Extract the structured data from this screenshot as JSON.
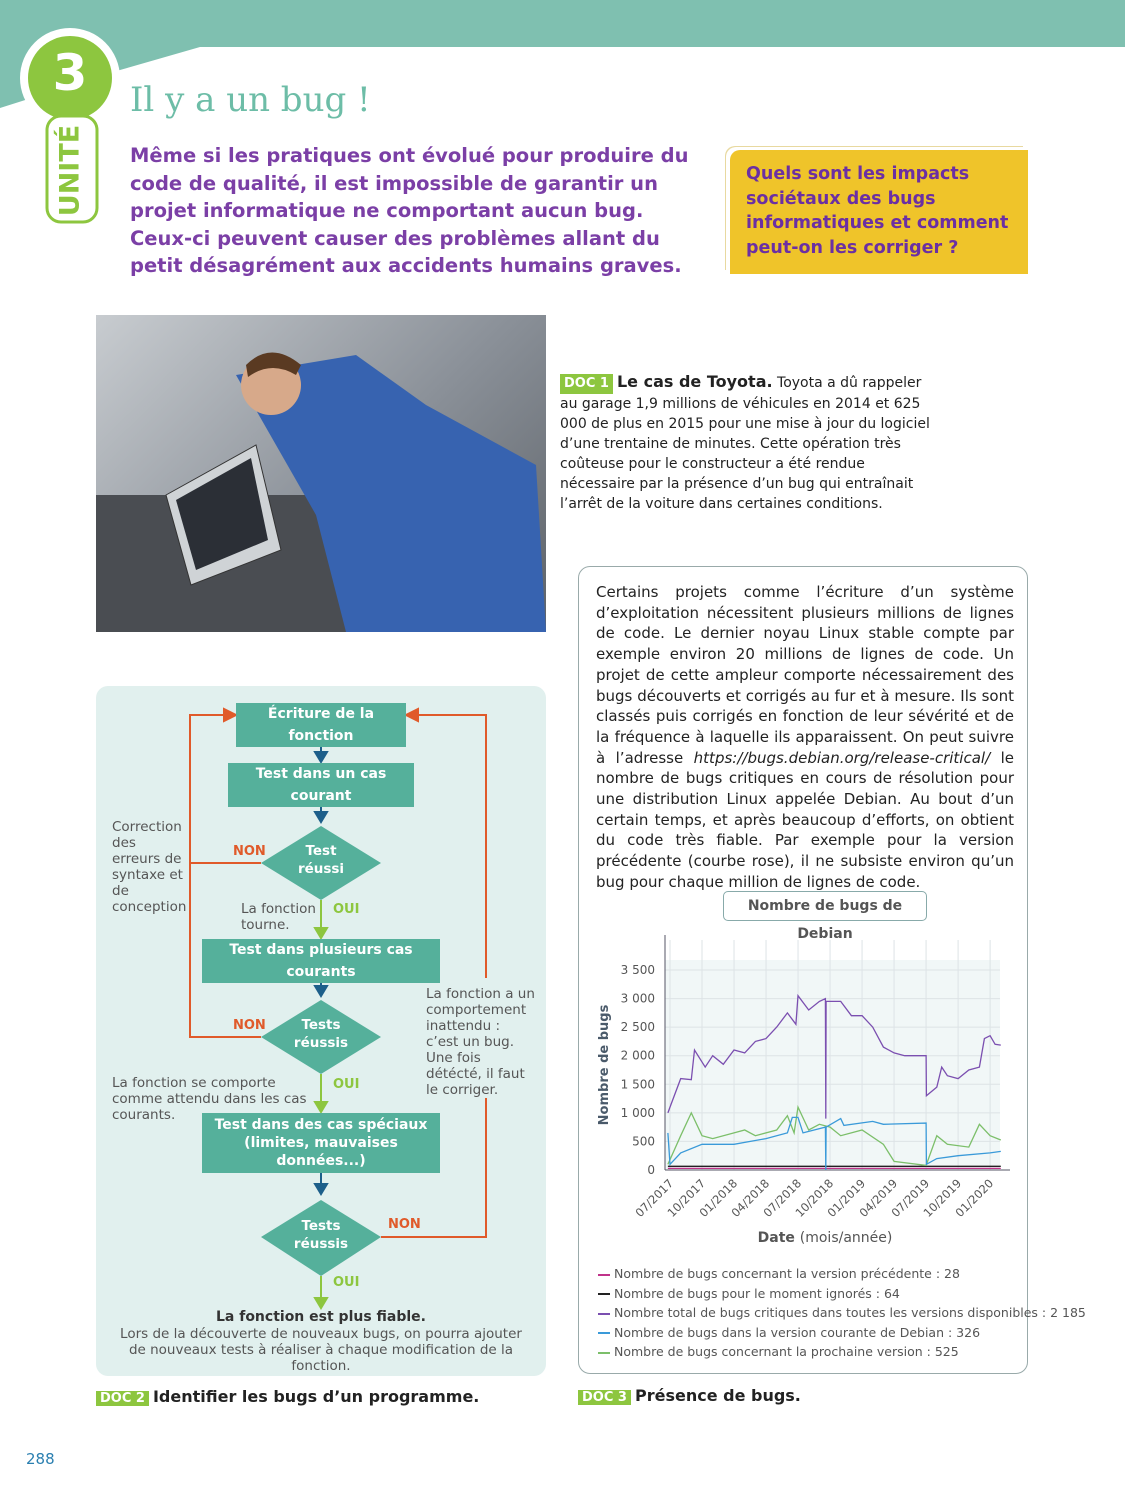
{
  "header": {
    "unit_number": "3",
    "unit_label": "UNITÉ",
    "title": "Il y a un bug !",
    "intro": "Même si les pratiques ont évolué pour produire du code de qualité, il est impossible de garantir un projet informatique ne comportant aucun bug. Ceux-ci peuvent causer des problèmes allant du petit désagrément aux accidents humains graves.",
    "question": "Quels sont les impacts sociétaux des bugs informatiques et comment peut-on les corriger ?"
  },
  "doc1": {
    "tag": "DOC 1",
    "title": "Le cas de Toyota.",
    "text": "Toyota a dû rappeler au garage 1,9 millions de véhicules en 2014 et 625 000 de plus en 2015 pour une mise à jour du logiciel d’une trentaine de minutes. Cette opération très coûteuse pour le constructeur a été rendue nécessaire par la présence d’un bug qui entraînait l’arrêt de la voiture dans certaines conditions."
  },
  "doc2": {
    "tag": "DOC 2",
    "caption": "Identifier les bugs d’un programme.",
    "steps": {
      "write": "Écriture de la fonction",
      "test1": "Test dans un cas courant",
      "dec1": "Test réussi",
      "test2": "Test dans plusieurs cas courants",
      "dec2": "Tests réussis",
      "test3": "Test dans des cas spéciaux (limites, mauvaises données...)",
      "dec3": "Tests réussis"
    },
    "non": "NON",
    "oui": "OUI",
    "notes": {
      "correction": "Correction des erreurs de syntaxe et de conception",
      "runs": "La fonction tourne.",
      "behaves": "La fonction se comporte comme attendu dans les cas courants.",
      "bug": "La fonction a un comportement inattendu : c’est un bug. Une fois détécté, il faut le corriger.",
      "reliable": "La fonction est plus fiable.",
      "footer": "Lors de la découverte de nouveaux bugs, on pourra ajouter de nouveaux tests à réaliser à chaque modification de la fonction."
    }
  },
  "doc3": {
    "tag": "DOC 3",
    "caption": "Présence de bugs.",
    "text_before": "Certains projets comme l’écriture d’un système d’exploitation nécessitent plusieurs millions de lignes de code. Le dernier noyau Linux stable compte par exemple environ 20 millions de lignes de code. Un projet de cette ampleur comporte nécessairement des bugs découverts et corrigés au fur et à mesure. Ils sont classés puis corrigés en fonction de leur sévérité et de la fréquence à laquelle ils apparaissent. On peut suivre à l’adresse ",
    "url": "https://bugs.debian.org/release-critical/",
    "text_after": " le nombre de bugs critiques en cours de résolution pour une distribution Linux appelée Debian. Au bout d’un certain temps, et après beaucoup d’efforts, on obtient du code très fiable. Par exemple pour la version précédente (courbe rose), il ne subsiste environ qu’un bug pour chaque million de lignes de code."
  },
  "chart_data": {
    "type": "line",
    "title": "Nombre de bugs de Debian",
    "xlabel_bold": "Date",
    "xlabel_rest": "(mois/année)",
    "ylabel": "Nombre de bugs",
    "ylim": [
      0,
      3500
    ],
    "grid": true,
    "yticks": [
      0,
      500,
      1000,
      1500,
      2000,
      2500,
      3000,
      3500
    ],
    "ytick_labels": [
      "0",
      "500",
      "1 000",
      "1 500",
      "2 000",
      "2 500",
      "3 000",
      "3 500"
    ],
    "xticks": [
      "2017-07",
      "2017-10",
      "2018-01",
      "2018-04",
      "2018-07",
      "2018-10",
      "2019-01",
      "2019-04",
      "2019-07",
      "2019-10",
      "2020-01"
    ],
    "xtick_labels": [
      "07/2017",
      "10/2017",
      "01/2018",
      "04/2018",
      "07/2018",
      "10/2018",
      "01/2019",
      "04/2019",
      "07/2019",
      "10/2019",
      "01/2020"
    ],
    "series": [
      {
        "name": "Nombre total de bugs critiques dans toutes les versions disponibles : 2 185",
        "color": "#7b4fb0",
        "points": [
          [
            "2017-06-25",
            1000
          ],
          [
            "2017-07-01",
            1100
          ],
          [
            "2017-08-01",
            1600
          ],
          [
            "2017-09-01",
            1580
          ],
          [
            "2017-09-10",
            2100
          ],
          [
            "2017-10-10",
            1800
          ],
          [
            "2017-11-01",
            2000
          ],
          [
            "2017-12-01",
            1850
          ],
          [
            "2018-01-01",
            2100
          ],
          [
            "2018-02-01",
            2050
          ],
          [
            "2018-03-01",
            2250
          ],
          [
            "2018-04-01",
            2300
          ],
          [
            "2018-05-01",
            2500
          ],
          [
            "2018-06-01",
            2750
          ],
          [
            "2018-06-25",
            2550
          ],
          [
            "2018-07-01",
            3050
          ],
          [
            "2018-08-01",
            2800
          ],
          [
            "2018-09-01",
            2950
          ],
          [
            "2018-09-18",
            3000
          ],
          [
            "2018-09-19",
            900
          ],
          [
            "2018-09-20",
            2950
          ],
          [
            "2018-11-01",
            2950
          ],
          [
            "2018-12-01",
            2700
          ],
          [
            "2019-01-01",
            2700
          ],
          [
            "2019-02-01",
            2500
          ],
          [
            "2019-03-01",
            2150
          ],
          [
            "2019-04-01",
            2050
          ],
          [
            "2019-05-01",
            2000
          ],
          [
            "2019-07-01",
            2000
          ],
          [
            "2019-07-02",
            1300
          ],
          [
            "2019-08-01",
            1450
          ],
          [
            "2019-08-15",
            1800
          ],
          [
            "2019-09-01",
            1650
          ],
          [
            "2019-10-01",
            1600
          ],
          [
            "2019-11-01",
            1750
          ],
          [
            "2019-12-01",
            1800
          ],
          [
            "2019-12-15",
            2300
          ],
          [
            "2020-01-01",
            2350
          ],
          [
            "2020-01-15",
            2200
          ],
          [
            "2020-02-01",
            2185
          ]
        ]
      },
      {
        "name": "Nombre de bugs dans la version courante de Debian : 326",
        "color": "#3a9ad9",
        "points": [
          [
            "2017-06-25",
            650
          ],
          [
            "2017-07-01",
            100
          ],
          [
            "2017-08-01",
            300
          ],
          [
            "2017-10-01",
            450
          ],
          [
            "2018-01-01",
            450
          ],
          [
            "2018-04-01",
            550
          ],
          [
            "2018-06-01",
            650
          ],
          [
            "2018-06-15",
            920
          ],
          [
            "2018-07-01",
            920
          ],
          [
            "2018-07-15",
            650
          ],
          [
            "2018-09-18",
            750
          ],
          [
            "2018-09-19",
            0
          ],
          [
            "2018-09-20",
            750
          ],
          [
            "2018-11-01",
            900
          ],
          [
            "2018-11-10",
            780
          ],
          [
            "2019-02-01",
            850
          ],
          [
            "2019-03-01",
            800
          ],
          [
            "2019-07-01",
            820
          ],
          [
            "2019-07-02",
            100
          ],
          [
            "2019-08-01",
            200
          ],
          [
            "2019-10-01",
            250
          ],
          [
            "2020-01-01",
            300
          ],
          [
            "2020-02-01",
            326
          ]
        ]
      },
      {
        "name": "Nombre de bugs concernant la prochaine version : 525",
        "color": "#7cbf6a",
        "points": [
          [
            "2017-06-25",
            100
          ],
          [
            "2017-08-01",
            600
          ],
          [
            "2017-09-01",
            1000
          ],
          [
            "2017-10-01",
            600
          ],
          [
            "2017-11-01",
            550
          ],
          [
            "2018-01-01",
            650
          ],
          [
            "2018-02-01",
            700
          ],
          [
            "2018-03-01",
            600
          ],
          [
            "2018-05-01",
            700
          ],
          [
            "2018-06-01",
            950
          ],
          [
            "2018-06-20",
            650
          ],
          [
            "2018-07-01",
            1100
          ],
          [
            "2018-08-01",
            700
          ],
          [
            "2018-09-01",
            800
          ],
          [
            "2018-10-01",
            750
          ],
          [
            "2018-11-01",
            600
          ],
          [
            "2019-01-01",
            700
          ],
          [
            "2019-03-01",
            450
          ],
          [
            "2019-04-01",
            150
          ],
          [
            "2019-07-01",
            80
          ],
          [
            "2019-08-01",
            600
          ],
          [
            "2019-09-01",
            450
          ],
          [
            "2019-11-01",
            400
          ],
          [
            "2019-12-01",
            800
          ],
          [
            "2020-01-01",
            600
          ],
          [
            "2020-02-01",
            525
          ]
        ]
      },
      {
        "name": "Nombre de bugs concernant la version précédente : 28",
        "color": "#c0338a",
        "points": [
          [
            "2017-06-25",
            28
          ],
          [
            "2020-02-01",
            28
          ]
        ]
      },
      {
        "name": "Nombre de bugs pour le moment ignorés : 64",
        "color": "#222222",
        "points": [
          [
            "2017-06-25",
            64
          ],
          [
            "2020-02-01",
            64
          ]
        ]
      }
    ]
  },
  "page_number": "288"
}
